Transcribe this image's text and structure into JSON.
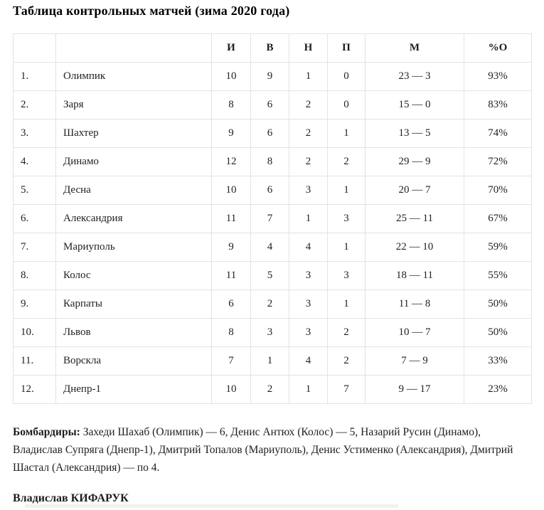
{
  "page": {
    "title": "Таблица контрольных матчей (зима 2020 года)"
  },
  "table": {
    "headers": [
      "",
      "",
      "И",
      "В",
      "Н",
      "П",
      "М",
      "%О"
    ],
    "rows": [
      {
        "rank": "1.",
        "team": "Олимпик",
        "i": "10",
        "v": "9",
        "n": "1",
        "p": "0",
        "m": "23 — 3",
        "pct": "93%"
      },
      {
        "rank": "2.",
        "team": "Заря",
        "i": "8",
        "v": "6",
        "n": "2",
        "p": "0",
        "m": "15 — 0",
        "pct": "83%"
      },
      {
        "rank": "3.",
        "team": "Шахтер",
        "i": "9",
        "v": "6",
        "n": "2",
        "p": "1",
        "m": "13 — 5",
        "pct": "74%"
      },
      {
        "rank": "4.",
        "team": "Динамо",
        "i": "12",
        "v": "8",
        "n": "2",
        "p": "2",
        "m": "29 — 9",
        "pct": "72%"
      },
      {
        "rank": "5.",
        "team": "Десна",
        "i": "10",
        "v": "6",
        "n": "3",
        "p": "1",
        "m": "20 — 7",
        "pct": "70%"
      },
      {
        "rank": "6.",
        "team": "Александрия",
        "i": "11",
        "v": "7",
        "n": "1",
        "p": "3",
        "m": "25 — 11",
        "pct": "67%"
      },
      {
        "rank": "7.",
        "team": "Мариуполь",
        "i": "9",
        "v": "4",
        "n": "4",
        "p": "1",
        "m": "22 — 10",
        "pct": "59%"
      },
      {
        "rank": "8.",
        "team": "Колос",
        "i": "11",
        "v": "5",
        "n": "3",
        "p": "3",
        "m": "18 — 11",
        "pct": "55%"
      },
      {
        "rank": "9.",
        "team": "Карпаты",
        "i": "6",
        "v": "2",
        "n": "3",
        "p": "1",
        "m": "11 — 8",
        "pct": "50%"
      },
      {
        "rank": "10.",
        "team": "Львов",
        "i": "8",
        "v": "3",
        "n": "3",
        "p": "2",
        "m": "10 — 7",
        "pct": "50%"
      },
      {
        "rank": "11.",
        "team": "Ворскла",
        "i": "7",
        "v": "1",
        "n": "4",
        "p": "2",
        "m": "7 — 9",
        "pct": "33%"
      },
      {
        "rank": "12.",
        "team": "Днепр-1",
        "i": "10",
        "v": "2",
        "n": "1",
        "p": "7",
        "m": "9 — 17",
        "pct": "23%"
      }
    ]
  },
  "footer": {
    "scorers_label": "Бомбардиры:",
    "scorers_text": " Захеди Шахаб (Олимпик) — 6, Денис Антюх (Колос) — 5, Назарий Русин (Динамо), Владислав Супряга (Днепр-1), Дмитрий Топалов (Мариуполь), Денис Устименко (Александрия), Дмитрий Шастал (Александрия) — по 4.",
    "author": "Владислав КИФАРУК"
  },
  "colors": {
    "border": "#e3e3e3",
    "text": "#222222"
  }
}
